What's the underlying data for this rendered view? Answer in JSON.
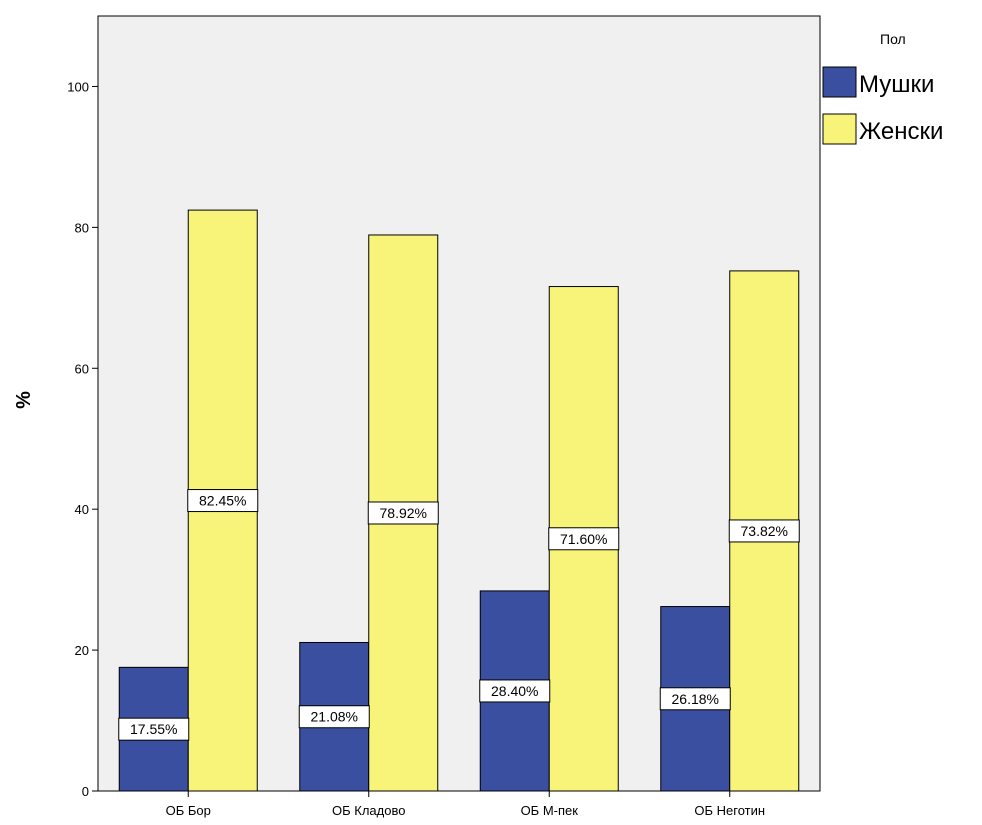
{
  "chart_data": {
    "type": "bar",
    "categories": [
      "ОБ Бор",
      "ОБ Кладово",
      "ОБ М-пек",
      "ОБ Неготин"
    ],
    "series": [
      {
        "name": "Мушки",
        "color": "#3a4fa0",
        "values": [
          17.55,
          21.08,
          28.4,
          26.18
        ],
        "labels": [
          "17.55%",
          "21.08%",
          "28.40%",
          "26.18%"
        ]
      },
      {
        "name": "Женски",
        "color": "#f8f47a",
        "values": [
          82.45,
          78.92,
          71.6,
          73.82
        ],
        "labels": [
          "82.45%",
          "78.92%",
          "71.60%",
          "73.82%"
        ]
      }
    ],
    "ylabel": "%",
    "xlabel": "",
    "ylim": [
      0,
      110
    ],
    "yticks": [
      0,
      20,
      40,
      60,
      80,
      100
    ],
    "grid": false,
    "plot_background": "#f0f0f0",
    "legend": {
      "title": "Пол",
      "placement": "top-right outside"
    }
  }
}
